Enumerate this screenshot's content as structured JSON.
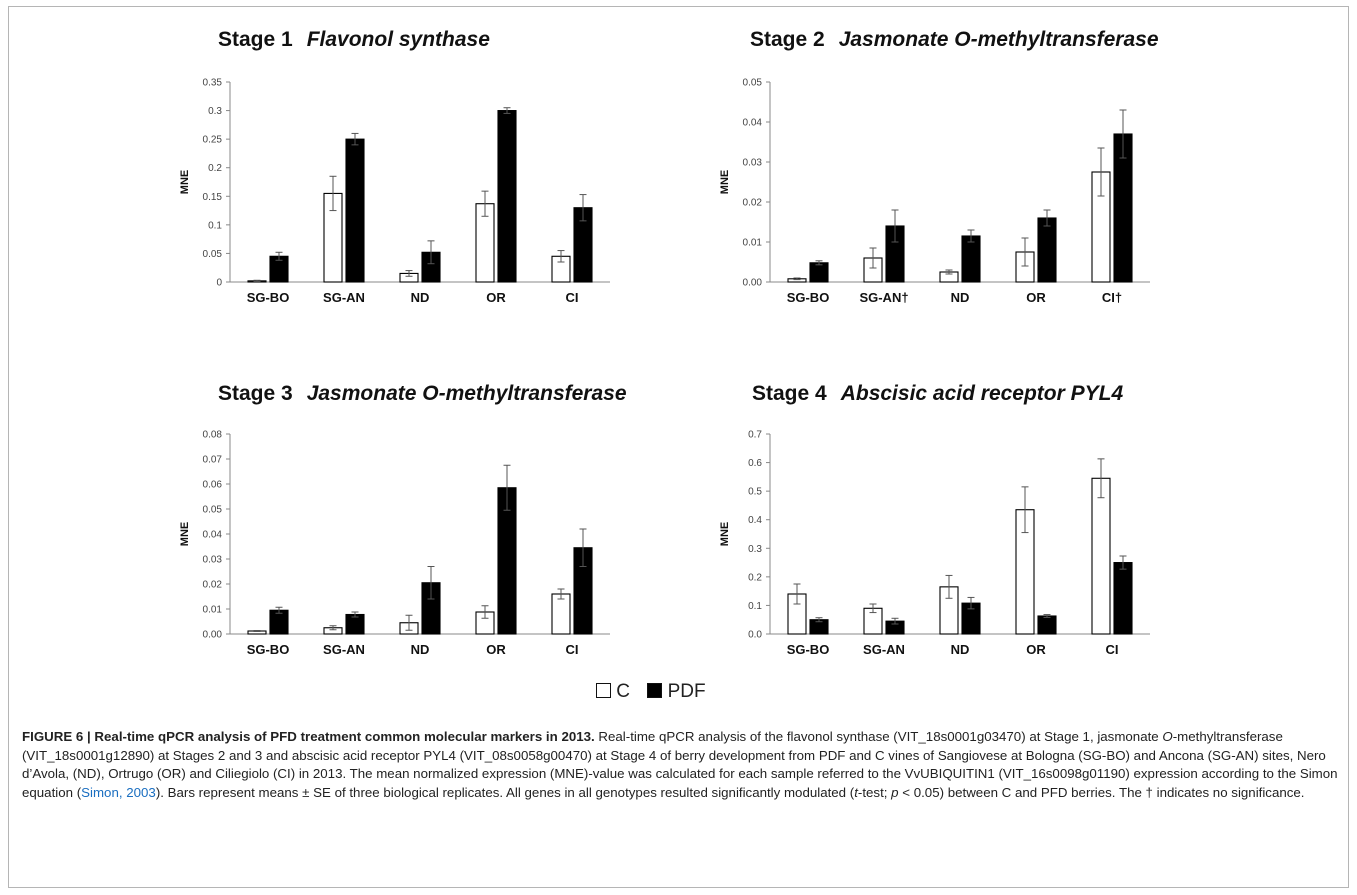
{
  "figure": {
    "legend": [
      {
        "label": "C",
        "color": "#ffffff"
      },
      {
        "label": "PDF",
        "color": "#000000"
      }
    ],
    "caption": {
      "title": "FIGURE 6 | Real-time qPCR analysis of PFD treatment common molecular markers in 2013.",
      "text_1": " Real-time qPCR analysis of the flavonol synthase (VIT_18s0001g03470) at Stage 1, jasmonate ",
      "italic_1": "O",
      "text_2": "-methyltransferase (VIT_18s0001g12890) at Stages 2 and 3 and abscisic acid receptor PYL4 (VIT_08s0058g00470) at Stage 4 of berry development from PDF and C vines of Sangiovese at Bologna (SG-BO) and Ancona (SG-AN) sites, Nero d’Avola, (ND), Ortrugo (OR) and Ciliegiolo (CI) in 2013. The mean normalized expression (MNE)-value was calculated for each sample referred to the VvUBIQUITIN1 (VIT_16s0098g01190) expression according to the Simon equation (",
      "citation": "Simon, 2003",
      "text_3": "). Bars represent means ± SE of three biological replicates. All genes in all genotypes resulted significantly modulated (",
      "italic_2": "t",
      "text_4": "-test; ",
      "italic_3": "p",
      "text_5": " < 0.05) between C and PFD berries. The † indicates no significance."
    }
  },
  "chart_data": [
    {
      "type": "bar",
      "stage": "Stage 1",
      "gene": "Flavonol synthase",
      "ylabel": "MNE",
      "ylim": [
        0,
        0.35
      ],
      "yticks": [
        "0",
        "0.05",
        "0.1",
        "0.15",
        "0.2",
        "0.25",
        "0.3",
        "0.35"
      ],
      "categories": [
        "SG-BO",
        "SG-AN",
        "ND",
        "OR",
        "CI"
      ],
      "series": [
        {
          "name": "C",
          "color": "#ffffff",
          "values": [
            0.002,
            0.155,
            0.015,
            0.137,
            0.045
          ],
          "errors": [
            0.001,
            0.03,
            0.005,
            0.022,
            0.01
          ]
        },
        {
          "name": "PDF",
          "color": "#000000",
          "values": [
            0.045,
            0.25,
            0.052,
            0.3,
            0.13
          ],
          "errors": [
            0.007,
            0.01,
            0.02,
            0.005,
            0.023
          ]
        }
      ]
    },
    {
      "type": "bar",
      "stage": "Stage 2",
      "gene": "Jasmonate O-methyltransferase",
      "ylabel": "MNE",
      "ylim": [
        0,
        0.05
      ],
      "yticks": [
        "0.00",
        "0.01",
        "0.02",
        "0.03",
        "0.04",
        "0.05"
      ],
      "categories": [
        "SG-BO",
        "SG-AN†",
        "ND",
        "OR",
        "CI†"
      ],
      "series": [
        {
          "name": "C",
          "color": "#ffffff",
          "values": [
            0.0008,
            0.006,
            0.0025,
            0.0075,
            0.0275
          ],
          "errors": [
            0.0002,
            0.0025,
            0.0005,
            0.0035,
            0.006
          ]
        },
        {
          "name": "PDF",
          "color": "#000000",
          "values": [
            0.0048,
            0.014,
            0.0115,
            0.016,
            0.037
          ],
          "errors": [
            0.0005,
            0.004,
            0.0015,
            0.002,
            0.006
          ]
        }
      ]
    },
    {
      "type": "bar",
      "stage": "Stage 3",
      "gene": "Jasmonate O-methyltransferase",
      "ylabel": "MNE",
      "ylim": [
        0,
        0.08
      ],
      "yticks": [
        "0.00",
        "0.01",
        "0.02",
        "0.03",
        "0.04",
        "0.05",
        "0.06",
        "0.07",
        "0.08"
      ],
      "categories": [
        "SG-BO",
        "SG-AN",
        "ND",
        "OR",
        "CI"
      ],
      "series": [
        {
          "name": "C",
          "color": "#ffffff",
          "values": [
            0.0012,
            0.0025,
            0.0045,
            0.0088,
            0.016
          ],
          "errors": [
            0.0002,
            0.0008,
            0.003,
            0.0025,
            0.002
          ]
        },
        {
          "name": "PDF",
          "color": "#000000",
          "values": [
            0.0095,
            0.0078,
            0.0205,
            0.0585,
            0.0345
          ],
          "errors": [
            0.0012,
            0.001,
            0.0065,
            0.009,
            0.0075
          ]
        }
      ]
    },
    {
      "type": "bar",
      "stage": "Stage 4",
      "gene": "Abscisic acid receptor PYL4",
      "ylabel": "MNE",
      "ylim": [
        0,
        0.7
      ],
      "yticks": [
        "0.0",
        "0.1",
        "0.2",
        "0.3",
        "0.4",
        "0.5",
        "0.6",
        "0.7"
      ],
      "categories": [
        "SG-BO",
        "SG-AN",
        "ND",
        "OR",
        "CI"
      ],
      "series": [
        {
          "name": "C",
          "color": "#ffffff",
          "values": [
            0.14,
            0.09,
            0.165,
            0.435,
            0.545
          ],
          "errors": [
            0.035,
            0.015,
            0.04,
            0.08,
            0.068
          ]
        },
        {
          "name": "PDF",
          "color": "#000000",
          "values": [
            0.05,
            0.045,
            0.108,
            0.063,
            0.25
          ],
          "errors": [
            0.007,
            0.01,
            0.02,
            0.005,
            0.023
          ]
        }
      ]
    }
  ]
}
